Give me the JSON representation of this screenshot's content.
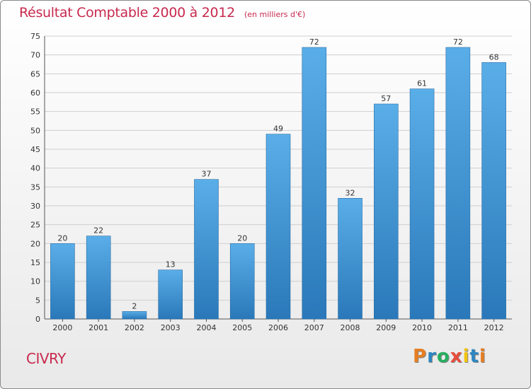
{
  "header": {
    "title": "Résultat Comptable 2000 à 2012",
    "unit": "(en milliers d'€)"
  },
  "footer": {
    "place": "CIVRY",
    "logo_letters": [
      {
        "ch": "P",
        "color": "#e67e22"
      },
      {
        "ch": "r",
        "color": "#2e86c1"
      },
      {
        "ch": "o",
        "color": "#27ae60"
      },
      {
        "ch": "x",
        "color": "#e74c3c"
      },
      {
        "ch": "i",
        "color": "#f1c40f"
      },
      {
        "ch": "t",
        "color": "#2e86c1"
      },
      {
        "ch": "i",
        "color": "#e67e22"
      }
    ]
  },
  "chart_data": {
    "type": "bar",
    "title": "Résultat Comptable 2000 à 2012",
    "xlabel": "",
    "ylabel": "",
    "ylim": [
      0,
      75
    ],
    "yticks": [
      0,
      5,
      10,
      15,
      20,
      25,
      30,
      35,
      40,
      45,
      50,
      55,
      60,
      65,
      70,
      75
    ],
    "grid": true,
    "categories": [
      "2000",
      "2001",
      "2002",
      "2003",
      "2004",
      "2005",
      "2006",
      "2007",
      "2008",
      "2009",
      "2010",
      "2011",
      "2012"
    ],
    "values": [
      20,
      22,
      2,
      13,
      37,
      20,
      49,
      72,
      32,
      57,
      61,
      72,
      68
    ],
    "colors": {
      "bar_top": "#5aaee8",
      "bar_bottom": "#2a78b9",
      "grid": "#cfcfcf",
      "text": "#c8294d"
    }
  }
}
